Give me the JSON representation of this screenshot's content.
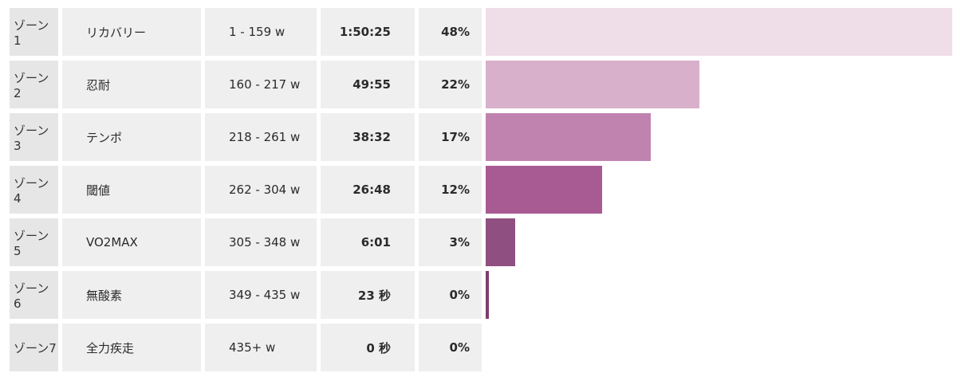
{
  "zones": [
    {
      "zone": "ゾーン 1",
      "name": "リカバリー",
      "range": "1 - 159 w",
      "time": "1:50:25",
      "percent": "48%",
      "fraction": 0.48,
      "color": "#efdde8"
    },
    {
      "zone": "ゾーン 2",
      "name": "忍耐",
      "range": "160 - 217 w",
      "time": "49:55",
      "percent": "22%",
      "fraction": 0.22,
      "color": "#d8b0cb"
    },
    {
      "zone": "ゾーン 3",
      "name": "テンポ",
      "range": "218 - 261 w",
      "time": "38:32",
      "percent": "17%",
      "fraction": 0.17,
      "color": "#c083b0"
    },
    {
      "zone": "ゾーン 4",
      "name": "閾値",
      "range": "262 - 304 w",
      "time": "26:48",
      "percent": "12%",
      "fraction": 0.12,
      "color": "#a85a93"
    },
    {
      "zone": "ゾーン 5",
      "name": "VO2MAX",
      "range": "305 - 348 w",
      "time": "6:01",
      "percent": "3%",
      "fraction": 0.03,
      "color": "#8f4f80"
    },
    {
      "zone": "ゾーン 6",
      "name": "無酸素",
      "range": "349 - 435 w",
      "time": "23 秒",
      "percent": "0%",
      "fraction": 0.003,
      "color": "#7c3d6e"
    },
    {
      "zone": "ゾーン7",
      "name": "全力疾走",
      "range": "435+ w",
      "time": "0 秒",
      "percent": "0%",
      "fraction": 0,
      "color": "#7c3d6e"
    }
  ]
}
